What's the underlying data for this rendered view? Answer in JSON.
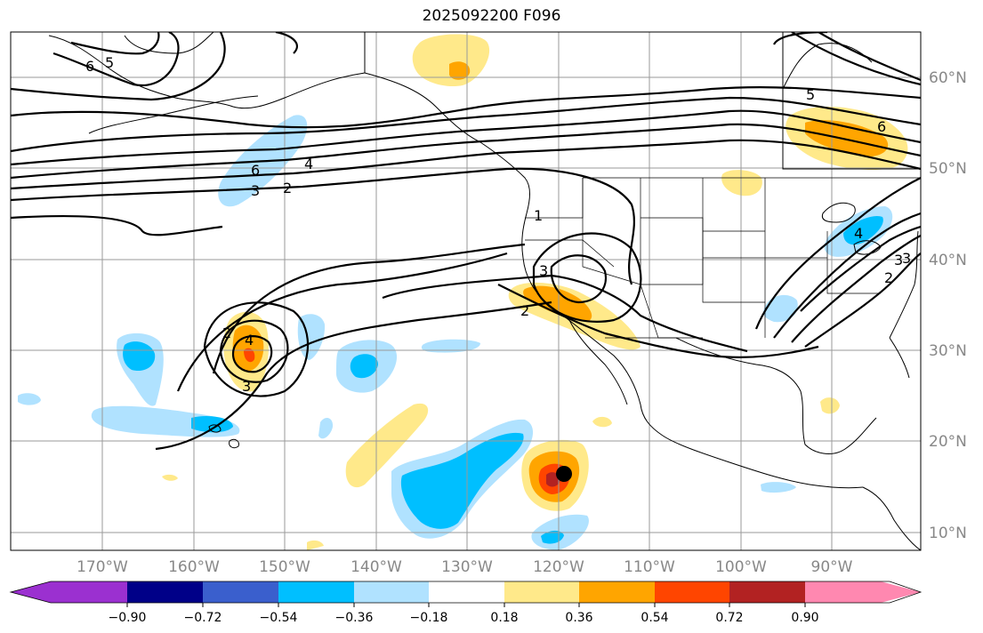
{
  "title": "2025092200 F096",
  "longitude_ticks": [
    "170°W",
    "160°W",
    "150°W",
    "140°W",
    "130°W",
    "120°W",
    "110°W",
    "100°W",
    "90°W"
  ],
  "latitude_ticks": [
    "60°N",
    "50°N",
    "40°N",
    "30°N",
    "20°N",
    "10°N"
  ],
  "colorbar": {
    "ticks": [
      "−0.90",
      "−0.72",
      "−0.54",
      "−0.36",
      "−0.18",
      "0.18",
      "0.36",
      "0.54",
      "0.72",
      "0.90"
    ],
    "colors": [
      "#9b30d0",
      "#000088",
      "#3a5fcd",
      "#00bfff",
      "#b0e2ff",
      "#ffffff",
      "#ffe98a",
      "#ffa500",
      "#ff4500",
      "#b22222",
      "#ff88b0"
    ]
  },
  "contour_labels": [
    "6",
    "5",
    "4",
    "3",
    "2",
    "1",
    "2",
    "3",
    "4",
    "3",
    "2",
    "3",
    "6",
    "5",
    "6",
    "4",
    "3",
    "2"
  ],
  "storm_marker": "black-dot"
}
